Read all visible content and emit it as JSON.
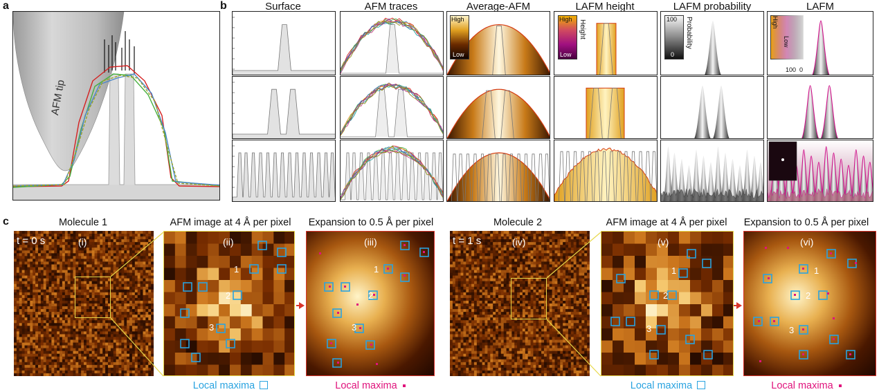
{
  "panel_labels": {
    "a": "a",
    "b": "b",
    "c": "c"
  },
  "panel_a": {
    "tip_label": "AFM tip"
  },
  "panel_b": {
    "columns": [
      "Surface",
      "AFM traces",
      "Average-AFM",
      "LAFM height",
      "LAFM probability",
      "LAFM"
    ],
    "avg_legend": {
      "high": "High",
      "low": "Low"
    },
    "height_legend": {
      "high": "High",
      "low": "Low",
      "axis": "Height"
    },
    "prob_legend": {
      "max": "100",
      "min": "0",
      "axis": "Probability"
    },
    "lafm_legend": {
      "high": "High",
      "low": "Low",
      "max": "100",
      "min": "0"
    }
  },
  "panel_c": {
    "titles": [
      "Molecule 1",
      "AFM image at 4 Å per pixel",
      "Expansion to 0.5 Å per pixel",
      "Molecule 2",
      "AFM image at 4 Å per pixel",
      "Expansion to 0.5 Å per pixel"
    ],
    "roman": [
      "(i)",
      "(ii)",
      "(iii)",
      "(iv)",
      "(v)",
      "(vi)"
    ],
    "time_1": "t = 0 s",
    "time_2": "t = 1 s",
    "markers": [
      "1",
      "2",
      "3"
    ],
    "legend_blue": "Local maxima",
    "legend_pink": "Local maxima",
    "colors": {
      "blue_marker": "#29a3e0",
      "pink_marker": "#e0137c",
      "outline_yellow": "#e8d84a",
      "outline_red": "#d9342b",
      "afm_dark": "#3a1600",
      "afm_light": "#fff4c8"
    }
  }
}
